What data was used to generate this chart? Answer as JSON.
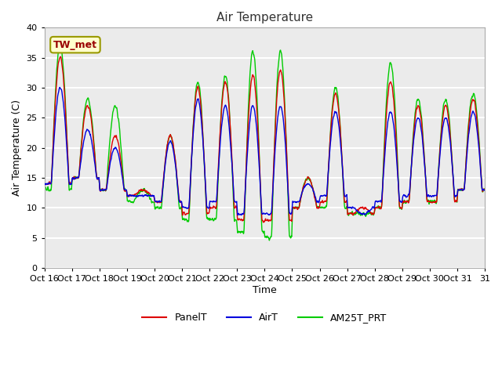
{
  "title": "Air Temperature",
  "xlabel": "Time",
  "ylabel": "Air Temperature (C)",
  "ylim": [
    0,
    40
  ],
  "yticks": [
    0,
    5,
    10,
    15,
    20,
    25,
    30,
    35,
    40
  ],
  "n_days": 16,
  "xtick_labels": [
    "Oct 16",
    "Oct 17",
    "Oct 18",
    "Oct 19",
    "Oct 20",
    "Oct 21",
    "Oct 22",
    "Oct 23",
    "Oct 24",
    "Oct 25",
    "Oct 26",
    "Oct 27",
    "Oct 28",
    "Oct 29",
    "Oct 30",
    "Oct 31"
  ],
  "series": {
    "PanelT": {
      "color": "#dd0000",
      "lw": 1.0
    },
    "AirT": {
      "color": "#0000dd",
      "lw": 1.0
    },
    "AM25T_PRT": {
      "color": "#00cc00",
      "lw": 1.0
    }
  },
  "annotation_text": "TW_met",
  "annotation_color": "#990000",
  "annotation_bg": "#ffffcc",
  "annotation_border": "#999900",
  "bg_color": "#ebebeb",
  "fig_bg": "#ffffff",
  "grid_color": "#ffffff",
  "grid_lw": 1.5
}
